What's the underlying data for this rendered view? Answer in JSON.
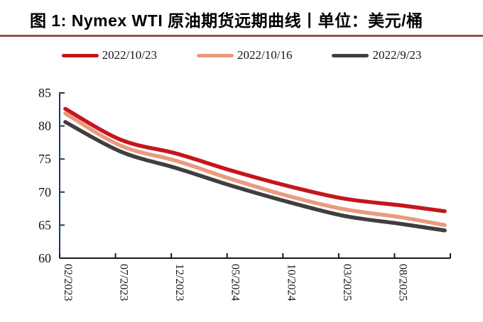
{
  "page": {
    "title": "图 1: Nymex WTI 原油期货远期曲线丨单位：美元/桶"
  },
  "chart_data": {
    "type": "line",
    "title": "Nymex WTI 原油期货远期曲线",
    "unit": "美元/桶",
    "legend_position": "top",
    "grid": false,
    "ylim": [
      60,
      85
    ],
    "y_ticks": [
      60,
      65,
      70,
      75,
      80,
      85
    ],
    "x_tick_labels": [
      "02/2023",
      "07/2023",
      "12/2023",
      "05/2024",
      "10/2024",
      "03/2025",
      "08/2025"
    ],
    "months_per_tick": 5,
    "total_months": 35,
    "x_anchor_months": [
      0,
      5,
      10,
      15,
      20,
      25,
      30,
      34
    ],
    "series": [
      {
        "name": "2022/10/23",
        "color": "#c4161c",
        "values": [
          82.6,
          77.9,
          75.8,
          73.2,
          70.9,
          69.0,
          68.0,
          67.1
        ]
      },
      {
        "name": "2022/10/16",
        "color": "#e89b7e",
        "values": [
          81.9,
          77.0,
          74.7,
          71.9,
          69.4,
          67.4,
          66.2,
          65.0
        ]
      },
      {
        "name": "2022/9/23",
        "color": "#3f3f3f",
        "values": [
          80.6,
          76.1,
          73.6,
          70.9,
          68.5,
          66.4,
          65.2,
          64.2
        ]
      }
    ],
    "colors": {
      "y_axis": "#1f3864",
      "x_axis": "#1a1a1a",
      "title_rule": "#9a4f4b",
      "tick_label": "#141414"
    }
  }
}
